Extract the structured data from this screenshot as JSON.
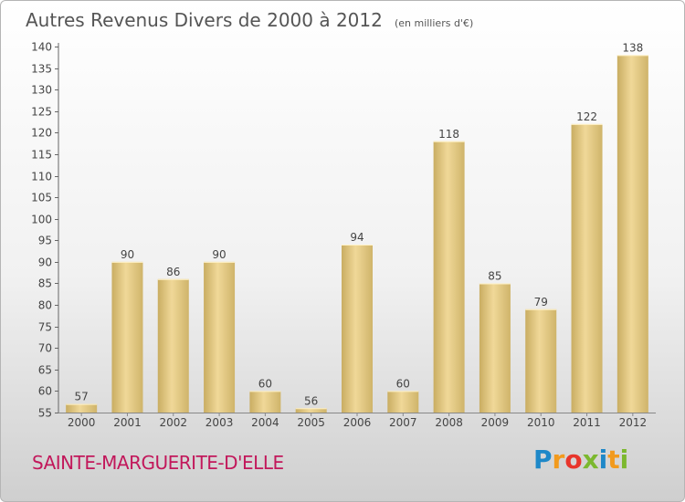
{
  "chart_data": {
    "type": "bar",
    "title": "Autres Revenus Divers de 2000 à 2012",
    "subtitle": "(en milliers d'€)",
    "xlabel": "",
    "ylabel": "",
    "categories": [
      "2000",
      "2001",
      "2002",
      "2003",
      "2004",
      "2005",
      "2006",
      "2007",
      "2008",
      "2009",
      "2010",
      "2011",
      "2012"
    ],
    "values": [
      57,
      90,
      86,
      90,
      60,
      56,
      94,
      60,
      118,
      85,
      79,
      122,
      138
    ],
    "ylim": [
      55,
      140
    ],
    "yticks": [
      55,
      60,
      65,
      70,
      75,
      80,
      85,
      90,
      95,
      100,
      105,
      110,
      115,
      120,
      125,
      130,
      135,
      140
    ],
    "grid": false,
    "legend": "none",
    "bar_color": "#e3c77e"
  },
  "place_name": "SAINTE-MARGUERITE-D'ELLE",
  "logo": {
    "text": "Proxiti",
    "letters": [
      "P",
      "r",
      "o",
      "x",
      "i",
      "t",
      "i"
    ],
    "colors": [
      "#1e88c8",
      "#f29a1d",
      "#e8352b",
      "#7cb82f",
      "#1e88c8",
      "#f29a1d",
      "#7cb82f"
    ]
  }
}
